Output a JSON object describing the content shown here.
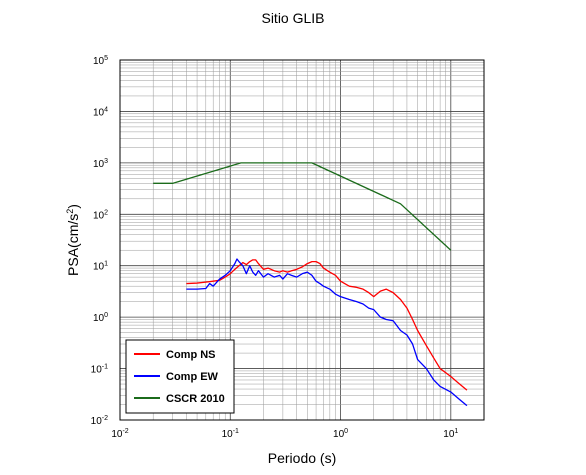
{
  "chart_data": {
    "type": "line",
    "title": "Sitio GLIB",
    "xlabel": "Periodo (s)",
    "ylabel": "PSA(cm/s²)",
    "x_scale": "log",
    "y_scale": "log",
    "xlim": [
      0.01,
      20
    ],
    "ylim": [
      0.01,
      100000
    ],
    "x_ticks": [
      {
        "value": 0.01,
        "base": "10",
        "exp": "-2"
      },
      {
        "value": 0.1,
        "base": "10",
        "exp": "-1"
      },
      {
        "value": 1,
        "base": "10",
        "exp": "0"
      },
      {
        "value": 10,
        "base": "10",
        "exp": "1"
      }
    ],
    "y_ticks": [
      {
        "value": 0.01,
        "base": "10",
        "exp": "-2"
      },
      {
        "value": 0.1,
        "base": "10",
        "exp": "-1"
      },
      {
        "value": 1,
        "base": "10",
        "exp": "0"
      },
      {
        "value": 10,
        "base": "10",
        "exp": "1"
      },
      {
        "value": 100,
        "base": "10",
        "exp": "2"
      },
      {
        "value": 1000,
        "base": "10",
        "exp": "3"
      },
      {
        "value": 10000,
        "base": "10",
        "exp": "4"
      },
      {
        "value": 100000,
        "base": "10",
        "exp": "5"
      }
    ],
    "grid": true,
    "legend_position": "bottom-left",
    "series": [
      {
        "name": "Comp NS",
        "color": "#ff0000",
        "x": [
          0.04,
          0.05,
          0.06,
          0.07,
          0.08,
          0.09,
          0.1,
          0.11,
          0.12,
          0.13,
          0.14,
          0.15,
          0.16,
          0.17,
          0.18,
          0.2,
          0.22,
          0.25,
          0.28,
          0.3,
          0.33,
          0.36,
          0.4,
          0.45,
          0.5,
          0.55,
          0.6,
          0.65,
          0.7,
          0.8,
          0.9,
          1.0,
          1.2,
          1.4,
          1.6,
          1.8,
          2.0,
          2.3,
          2.6,
          3.0,
          3.5,
          4.0,
          4.5,
          5.0,
          6.0,
          7.0,
          8.0,
          10.0,
          12.0,
          14.0
        ],
        "y": [
          4.5,
          4.6,
          4.8,
          5.0,
          5.2,
          6.0,
          7.0,
          8.5,
          10.0,
          11.5,
          10.5,
          12.0,
          13.0,
          13.0,
          11.0,
          8.5,
          9.0,
          8.0,
          7.5,
          8.0,
          7.5,
          8.0,
          8.5,
          9.5,
          11.0,
          12.0,
          12.0,
          11.0,
          9.0,
          7.5,
          6.5,
          5.0,
          4.0,
          3.8,
          3.5,
          3.0,
          2.5,
          3.2,
          3.5,
          3.0,
          2.2,
          1.5,
          0.9,
          0.55,
          0.28,
          0.16,
          0.1,
          0.07,
          0.05,
          0.038
        ]
      },
      {
        "name": "Comp EW",
        "color": "#0000ff",
        "x": [
          0.04,
          0.05,
          0.06,
          0.065,
          0.07,
          0.08,
          0.09,
          0.1,
          0.11,
          0.115,
          0.12,
          0.13,
          0.14,
          0.15,
          0.16,
          0.17,
          0.18,
          0.2,
          0.22,
          0.25,
          0.28,
          0.3,
          0.33,
          0.36,
          0.4,
          0.45,
          0.5,
          0.55,
          0.6,
          0.65,
          0.7,
          0.8,
          0.9,
          1.0,
          1.2,
          1.4,
          1.6,
          1.8,
          2.0,
          2.3,
          2.6,
          3.0,
          3.5,
          4.0,
          4.5,
          5.0,
          6.0,
          7.0,
          8.0,
          10.0,
          12.0,
          14.0
        ],
        "y": [
          3.5,
          3.5,
          3.6,
          4.5,
          4.0,
          5.5,
          6.5,
          8.0,
          11.0,
          13.5,
          12.0,
          10.0,
          7.0,
          10.0,
          7.5,
          6.5,
          8.0,
          6.0,
          7.0,
          6.0,
          6.5,
          5.5,
          7.0,
          6.5,
          6.0,
          7.0,
          7.5,
          6.5,
          5.0,
          4.5,
          4.0,
          3.5,
          2.8,
          2.5,
          2.2,
          2.0,
          1.8,
          1.5,
          1.4,
          1.0,
          0.9,
          0.85,
          0.55,
          0.45,
          0.3,
          0.15,
          0.1,
          0.06,
          0.045,
          0.035,
          0.025,
          0.019
        ]
      },
      {
        "name": "CSCR 2010",
        "color": "#1b6b1b",
        "x": [
          0.02,
          0.03,
          0.125,
          0.55,
          3.5,
          10.0
        ],
        "y": [
          400,
          400,
          1000,
          1000,
          160,
          20
        ]
      }
    ]
  }
}
